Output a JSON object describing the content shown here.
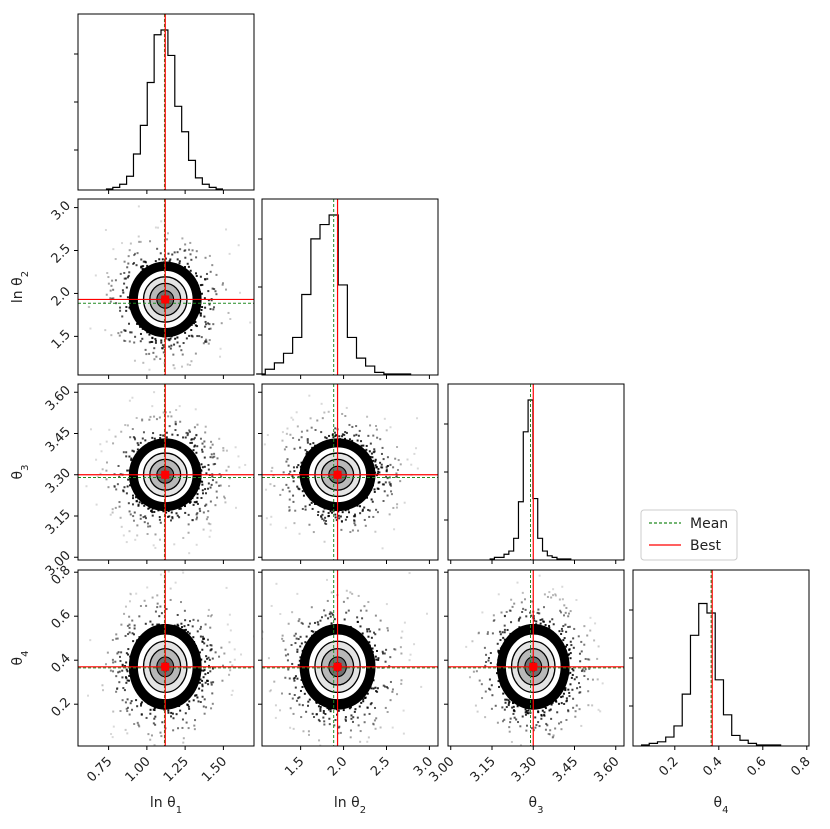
{
  "chart_data": {
    "type": "corner",
    "params": [
      {
        "key": "lnt1",
        "label": "ln θ",
        "sub": "1",
        "range": [
          0.55,
          1.7
        ],
        "ticks": [
          "0.75",
          "1.00",
          "1.25",
          "1.50"
        ],
        "tickvals": [
          0.75,
          1.0,
          1.25,
          1.5
        ],
        "mean": 1.115,
        "best": 1.12,
        "sd": 0.09,
        "hist": [
          0.0,
          0.01,
          0.03,
          0.08,
          0.22,
          0.4,
          0.67,
          0.97,
          1.0,
          0.84,
          0.52,
          0.36,
          0.18,
          0.07,
          0.03,
          0.01,
          0.0
        ]
      },
      {
        "key": "lnt2",
        "label": "ln θ",
        "sub": "2",
        "range": [
          1.05,
          3.1
        ],
        "ticks": [
          "1.5",
          "2.0",
          "2.5",
          "3.0"
        ],
        "tickvals": [
          1.5,
          2.0,
          2.5,
          3.0
        ],
        "mean": 1.885,
        "best": 1.93,
        "sd": 0.17,
        "hist": [
          0.0,
          0.03,
          0.07,
          0.13,
          0.23,
          0.5,
          0.85,
          0.94,
          1.0,
          0.56,
          0.23,
          0.1,
          0.05,
          0.01,
          0.0,
          0.0,
          0.0
        ]
      },
      {
        "key": "t3",
        "label": "θ",
        "sub": "3",
        "range": [
          2.99,
          3.63
        ],
        "ticks": [
          "3.00",
          "3.15",
          "3.30",
          "3.45",
          "3.60"
        ],
        "tickvals": [
          3.0,
          3.15,
          3.3,
          3.45,
          3.6
        ],
        "mean": 3.29,
        "best": 3.3,
        "sd": 0.035,
        "hist": [
          0.0,
          0.01,
          0.01,
          0.03,
          0.05,
          0.13,
          0.36,
          0.8,
          1.0,
          0.38,
          0.13,
          0.05,
          0.02,
          0.01,
          0.0,
          0.0,
          0.0
        ]
      },
      {
        "key": "t4",
        "label": "θ",
        "sub": "4",
        "range": [
          0.01,
          0.81
        ],
        "ticks": [
          "0.2",
          "0.4",
          "0.6",
          "0.8"
        ],
        "tickvals": [
          0.2,
          0.4,
          0.6,
          0.8
        ],
        "mean": 0.365,
        "best": 0.37,
        "sd": 0.075,
        "hist": [
          0.0,
          0.01,
          0.02,
          0.05,
          0.12,
          0.32,
          0.69,
          0.89,
          0.83,
          0.41,
          0.19,
          0.06,
          0.03,
          0.01,
          0.0,
          0.0,
          0.0
        ]
      }
    ],
    "legend": [
      {
        "label": "Mean",
        "color": "#228b22",
        "style": "dashed"
      },
      {
        "label": "Best",
        "color": "#ff0000",
        "style": "solid"
      }
    ],
    "colors": {
      "mean": "#228b22",
      "best": "#ff0000",
      "marker": "#ff0000"
    }
  }
}
